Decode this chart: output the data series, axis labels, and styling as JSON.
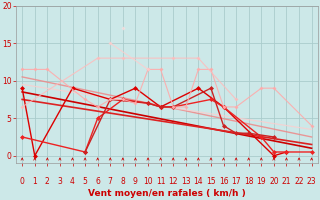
{
  "bg_color": "#cce8e8",
  "grid_color": "#aacccc",
  "x_label": "Vent moyen/en rafales ( km/h )",
  "x_min": -0.5,
  "x_max": 23.5,
  "y_min": -1.0,
  "y_max": 20,
  "y_ticks": [
    0,
    5,
    10,
    15,
    20
  ],
  "x_ticks": [
    0,
    1,
    2,
    3,
    4,
    5,
    6,
    7,
    8,
    9,
    10,
    11,
    12,
    13,
    14,
    15,
    16,
    17,
    18,
    19,
    20,
    21,
    22,
    23
  ],
  "lines": [
    {
      "x": [
        0,
        1,
        4,
        7,
        9,
        11,
        14,
        16,
        20,
        21
      ],
      "y": [
        9.0,
        0.0,
        9.0,
        7.5,
        9.0,
        6.5,
        9.0,
        6.5,
        0.0,
        0.5
      ],
      "color": "#dd0000",
      "alpha": 1.0,
      "lw": 1.0,
      "marker": "D",
      "ms": 2.5
    },
    {
      "x": [
        0,
        5,
        6,
        8,
        10,
        11,
        12,
        15,
        16,
        19,
        20,
        21,
        23
      ],
      "y": [
        2.5,
        0.5,
        5.0,
        7.5,
        7.0,
        6.5,
        6.5,
        7.5,
        6.5,
        2.5,
        0.5,
        0.5,
        0.5
      ],
      "color": "#ee2222",
      "alpha": 1.0,
      "lw": 1.0,
      "marker": "D",
      "ms": 2.5
    },
    {
      "x": [
        5,
        7,
        10,
        11,
        12,
        15,
        16,
        17,
        18,
        20
      ],
      "y": [
        0.5,
        7.5,
        7.0,
        6.5,
        6.5,
        9.0,
        4.0,
        3.0,
        3.0,
        2.5
      ],
      "color": "#cc2222",
      "alpha": 1.0,
      "lw": 1.0,
      "marker": "D",
      "ms": 2.5
    },
    {
      "x": [
        0,
        1,
        2,
        5,
        6,
        7,
        8,
        9,
        10,
        11,
        12,
        13,
        14,
        15,
        16,
        17,
        19,
        20,
        23
      ],
      "y": [
        11.5,
        11.5,
        11.5,
        7.5,
        6.5,
        7.5,
        7.5,
        7.0,
        11.5,
        11.5,
        6.5,
        6.5,
        11.5,
        11.5,
        6.5,
        6.5,
        9.0,
        9.0,
        4.0
      ],
      "color": "#ffaaaa",
      "alpha": 0.9,
      "lw": 0.8,
      "marker": "D",
      "ms": 2.0
    },
    {
      "x": [
        0,
        6,
        8,
        12,
        14,
        17
      ],
      "y": [
        6.5,
        13.0,
        13.0,
        13.0,
        13.0,
        7.5
      ],
      "color": "#ffbbbb",
      "alpha": 0.85,
      "lw": 0.8,
      "marker": "D",
      "ms": 2.0
    },
    {
      "x": [
        7,
        10
      ],
      "y": [
        15.0,
        11.5
      ],
      "color": "#ffcccc",
      "alpha": 0.8,
      "lw": 0.8,
      "marker": "D",
      "ms": 2.0
    },
    {
      "x": [
        8
      ],
      "y": [
        17.0
      ],
      "color": "#ffdddd",
      "alpha": 0.75,
      "lw": 0.8,
      "marker": "D",
      "ms": 2.0
    }
  ],
  "regression_lines": [
    {
      "x0": 0,
      "y0": 8.5,
      "x1": 23,
      "y1": 1.0,
      "color": "#cc0000",
      "alpha": 1.0,
      "lw": 1.2
    },
    {
      "x0": 0,
      "y0": 7.5,
      "x1": 23,
      "y1": 1.5,
      "color": "#dd2222",
      "alpha": 1.0,
      "lw": 1.2
    },
    {
      "x0": 0,
      "y0": 10.5,
      "x1": 23,
      "y1": 2.5,
      "color": "#ee8888",
      "alpha": 0.85,
      "lw": 1.0
    },
    {
      "x0": 0,
      "y0": 9.5,
      "x1": 23,
      "y1": 3.5,
      "color": "#ffcccc",
      "alpha": 0.75,
      "lw": 0.9
    }
  ],
  "tick_label_color": "#cc0000",
  "label_color": "#cc0000",
  "label_fontsize": 6.5,
  "tick_fontsize": 5.5
}
